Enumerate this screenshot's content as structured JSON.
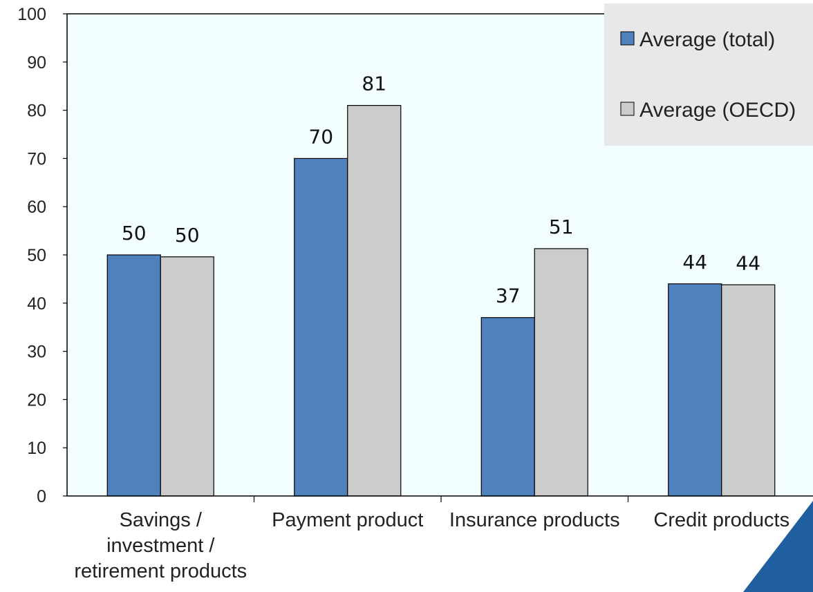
{
  "chart_data": {
    "type": "bar",
    "categories": [
      [
        "Savings /",
        "investment /",
        "retirement products"
      ],
      [
        "Payment product"
      ],
      [
        "Insurance products"
      ],
      [
        "Credit products"
      ]
    ],
    "series": [
      {
        "name": "Average (total)",
        "values": [
          50,
          70,
          37,
          44
        ],
        "labels": [
          "50",
          "70",
          "37",
          "44"
        ],
        "color": "#4f81bd"
      },
      {
        "name": "Average (OECD)",
        "values": [
          49.6,
          81,
          51.3,
          43.8
        ],
        "labels": [
          "50",
          "81",
          "51",
          "44"
        ],
        "color": "#cccccc"
      }
    ],
    "yticks": [
      "0",
      "10",
      "20",
      "30",
      "40",
      "50",
      "60",
      "70",
      "80",
      "90",
      "100"
    ],
    "ylim": [
      0,
      100
    ],
    "grid": false,
    "legend_position": "top-right",
    "colors": {
      "plot_background": "#f3fefe",
      "legend_background": "#e8e8e8",
      "corner_accent": "#1f5fa0"
    }
  }
}
